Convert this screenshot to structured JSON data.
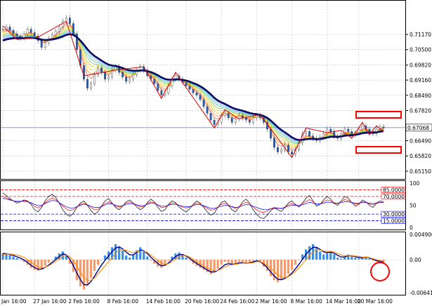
{
  "chart_data": {
    "type": "line",
    "price_panel": {
      "ylim": [
        0.649,
        0.725
      ],
      "y_ticks": [
        "0.71170",
        "0.70500",
        "0.69820",
        "0.69160",
        "0.68490",
        "0.67820",
        "0.66490",
        "0.65820",
        "0.65150"
      ],
      "y_tick_values": [
        0.7117,
        0.705,
        0.6982,
        0.6916,
        0.6849,
        0.6782,
        0.6649,
        0.6582,
        0.6515
      ],
      "current_price_label": "0.67068",
      "current_price": 0.67068,
      "closes": [
        0.714,
        0.715,
        0.7135,
        0.712,
        0.711,
        0.71,
        0.712,
        0.714,
        0.7125,
        0.711,
        0.709,
        0.706,
        0.708,
        0.71,
        0.7115,
        0.713,
        0.715,
        0.7175,
        0.719,
        0.7165,
        0.712,
        0.705,
        0.698,
        0.692,
        0.688,
        0.69,
        0.694,
        0.697,
        0.695,
        0.692,
        0.693,
        0.696,
        0.6975,
        0.695,
        0.693,
        0.691,
        0.692,
        0.694,
        0.696,
        0.6975,
        0.696,
        0.6935,
        0.692,
        0.69,
        0.687,
        0.685,
        0.686,
        0.689,
        0.692,
        0.6935,
        0.692,
        0.6905,
        0.689,
        0.6875,
        0.686,
        0.685,
        0.683,
        0.68,
        0.677,
        0.674,
        0.672,
        0.673,
        0.676,
        0.677,
        0.675,
        0.673,
        0.6745,
        0.676,
        0.675,
        0.674,
        0.673,
        0.675,
        0.676,
        0.675,
        0.673,
        0.67,
        0.666,
        0.662,
        0.66,
        0.661,
        0.663,
        0.66,
        0.659,
        0.661,
        0.664,
        0.668,
        0.669,
        0.667,
        0.666,
        0.665,
        0.6665,
        0.668,
        0.67,
        0.669,
        0.667,
        0.666,
        0.668,
        0.67,
        0.669,
        0.6675,
        0.6685,
        0.67,
        0.6715,
        0.67,
        0.669,
        0.668,
        0.67,
        0.671,
        0.6705
      ],
      "ma_slow": [
        0.709,
        0.7095,
        0.7098,
        0.71,
        0.7101,
        0.71,
        0.71,
        0.7101,
        0.7102,
        0.7101,
        0.7098,
        0.7094,
        0.7092,
        0.7093,
        0.7095,
        0.7098,
        0.7102,
        0.7108,
        0.7115,
        0.7118,
        0.7115,
        0.7105,
        0.709,
        0.7072,
        0.7052,
        0.7035,
        0.7022,
        0.7012,
        0.7002,
        0.6992,
        0.6984,
        0.698,
        0.6978,
        0.6974,
        0.6969,
        0.6963,
        0.6959,
        0.6957,
        0.6957,
        0.6958,
        0.6958,
        0.6955,
        0.6951,
        0.6945,
        0.6937,
        0.6928,
        0.6921,
        0.6918,
        0.6918,
        0.6919,
        0.6919,
        0.6917,
        0.6914,
        0.6909,
        0.6903,
        0.6897,
        0.6889,
        0.6879,
        0.6867,
        0.6853,
        0.6838,
        0.6826,
        0.6818,
        0.6811,
        0.6803,
        0.6795,
        0.6789,
        0.6785,
        0.6781,
        0.6776,
        0.6771,
        0.6768,
        0.6766,
        0.6763,
        0.6758,
        0.675,
        0.6738,
        0.6724,
        0.6709,
        0.6696,
        0.6686,
        0.6675,
        0.6664,
        0.6656,
        0.6652,
        0.6653,
        0.6656,
        0.6657,
        0.6657,
        0.6656,
        0.6657,
        0.6659,
        0.6663,
        0.6666,
        0.6666,
        0.6666,
        0.6668,
        0.6671,
        0.6673,
        0.6673,
        0.6675,
        0.6678,
        0.6682,
        0.6684,
        0.6685,
        0.6684,
        0.6686,
        0.6689,
        0.6691
      ]
    },
    "rsi_panel": {
      "ylim": [
        0,
        100
      ],
      "y_ticks": [
        "100",
        "50",
        "0"
      ],
      "y_tick_values": [
        100,
        50,
        0
      ],
      "levels": [
        {
          "label": "85.0000",
          "value": 85,
          "color": "#ff0000"
        },
        {
          "label": "70.0000",
          "value": 70,
          "color": "#ff0000"
        },
        {
          "label": "30.0000",
          "value": 30,
          "color": "#0000ff"
        },
        {
          "label": "15.0000",
          "value": 15,
          "color": "#0000ff"
        }
      ],
      "series": [
        {
          "color": "#000000",
          "values": [
            78,
            72,
            65,
            60,
            55,
            58,
            62,
            60,
            52,
            40,
            35,
            45,
            60,
            70,
            75,
            68,
            55,
            40,
            30,
            25,
            32,
            45,
            55,
            60,
            50,
            38,
            30,
            35,
            48,
            60,
            65,
            55,
            45,
            40,
            48,
            58,
            62,
            55,
            46,
            40,
            45,
            56,
            64,
            58,
            45,
            36,
            40,
            52,
            60,
            56,
            46,
            40,
            35,
            42,
            52,
            60,
            55,
            45,
            35,
            28,
            32,
            45,
            56,
            60,
            50,
            40,
            35,
            45,
            58,
            64,
            55,
            40,
            30,
            22,
            20,
            28,
            38,
            44,
            40,
            36,
            45,
            55,
            60,
            52,
            46,
            55,
            66,
            72,
            60,
            48,
            52,
            62,
            70,
            64,
            54,
            50,
            60,
            70,
            66,
            56,
            48,
            52,
            62,
            58,
            50,
            45,
            55,
            60,
            58
          ]
        },
        {
          "color": "#ff0000",
          "values": [
            70,
            67,
            63,
            60,
            58,
            59,
            60,
            59,
            55,
            48,
            44,
            48,
            56,
            62,
            66,
            63,
            56,
            48,
            42,
            38,
            40,
            46,
            52,
            55,
            51,
            45,
            40,
            41,
            47,
            54,
            58,
            54,
            48,
            46,
            49,
            55,
            58,
            55,
            50,
            46,
            48,
            54,
            58,
            56,
            50,
            45,
            46,
            51,
            55,
            54,
            50,
            46,
            44,
            46,
            51,
            55,
            53,
            48,
            43,
            39,
            40,
            46,
            52,
            55,
            51,
            46,
            43,
            47,
            53,
            57,
            54,
            46,
            40,
            35,
            34,
            37,
            42,
            45,
            44,
            42,
            46,
            51,
            54,
            51,
            49,
            53,
            59,
            63,
            58,
            52,
            53,
            58,
            62,
            60,
            56,
            54,
            58,
            63,
            61,
            57,
            53,
            54,
            58,
            57,
            53,
            51,
            54,
            57,
            56
          ]
        },
        {
          "color": "#0000ff",
          "values": [
            66,
            64,
            62,
            60,
            59,
            59,
            59,
            58,
            56,
            52,
            49,
            50,
            54,
            58,
            61,
            60,
            56,
            51,
            47,
            44,
            44,
            47,
            50,
            52,
            51,
            48,
            45,
            45,
            47,
            51,
            54,
            53,
            50,
            48,
            49,
            52,
            54,
            53,
            51,
            49,
            49,
            52,
            55,
            54,
            51,
            48,
            48,
            50,
            52,
            52,
            50,
            48,
            47,
            47,
            49,
            52,
            51,
            49,
            46,
            43,
            43,
            45,
            48,
            50,
            49,
            47,
            45,
            46,
            49,
            52,
            51,
            48,
            45,
            42,
            40,
            40,
            42,
            43,
            43,
            43,
            45,
            48,
            50,
            50,
            49,
            51,
            54,
            57,
            55,
            53,
            53,
            55,
            57,
            57,
            55,
            55,
            56,
            58,
            58,
            56,
            55,
            55,
            56,
            56,
            55,
            54,
            55,
            56,
            56
          ]
        }
      ]
    },
    "macd_panel": {
      "ylim": [
        -0.0064137,
        0.0049007
      ],
      "y_ticks": [
        "0.0049007",
        "0.00",
        "-0.0064137"
      ],
      "y_tick_values": [
        0.0049007,
        0,
        -0.0064137
      ],
      "histogram": [
        0.0012,
        0.0011,
        0.0009,
        0.0006,
        0.0003,
        0.0,
        -0.0004,
        -0.001,
        -0.0016,
        -0.002,
        -0.0022,
        -0.0018,
        -0.0012,
        -0.0006,
        0.0,
        0.0006,
        0.0012,
        0.0016,
        0.0008,
        -0.0008,
        -0.0024,
        -0.004,
        -0.0052,
        -0.0058,
        -0.005,
        -0.0036,
        -0.0022,
        -0.001,
        0.0,
        0.0008,
        0.0016,
        0.0024,
        0.003,
        0.0026,
        0.0018,
        0.0008,
        0.0004,
        0.001,
        0.0018,
        0.0024,
        0.0016,
        0.0006,
        -0.0002,
        -0.0008,
        -0.0014,
        -0.0016,
        -0.001,
        -0.0002,
        0.0006,
        0.0012,
        0.0014,
        0.001,
        0.0004,
        -0.0002,
        -0.0008,
        -0.0012,
        -0.0016,
        -0.002,
        -0.0024,
        -0.0028,
        -0.0024,
        -0.0018,
        -0.001,
        -0.0004,
        -0.0006,
        -0.001,
        -0.0008,
        -0.0004,
        -0.0006,
        -0.0008,
        -0.0006,
        -0.0002,
        0.0,
        -0.0006,
        -0.0014,
        -0.0022,
        -0.0032,
        -0.004,
        -0.0044,
        -0.004,
        -0.0034,
        -0.0028,
        -0.002,
        -0.001,
        0.0,
        0.001,
        0.002,
        0.0026,
        0.003,
        0.0024,
        0.0016,
        0.001,
        0.0012,
        0.0016,
        0.001,
        0.0004,
        0.0002,
        0.0006,
        0.001,
        0.0008,
        0.0004,
        0.0002,
        0.0004,
        0.0006,
        0.0002,
        -0.0002,
        -0.0004,
        -0.0006,
        -0.0005
      ],
      "signal": [
        0.001,
        0.0011,
        0.0011,
        0.001,
        0.0009,
        0.0007,
        0.0004,
        0.0,
        -0.0005,
        -0.001,
        -0.0014,
        -0.0016,
        -0.0015,
        -0.0012,
        -0.0008,
        -0.0003,
        0.0002,
        0.0007,
        0.0009,
        0.0006,
        -0.0002,
        -0.0012,
        -0.0024,
        -0.0034,
        -0.004,
        -0.004,
        -0.0036,
        -0.0028,
        -0.002,
        -0.0012,
        -0.0004,
        0.0004,
        0.0012,
        0.0018,
        0.002,
        0.0018,
        0.0015,
        0.0014,
        0.0015,
        0.0017,
        0.0017,
        0.0014,
        0.0009,
        0.0004,
        -0.0002,
        -0.0007,
        -0.0009,
        -0.0008,
        -0.0004,
        0.0001,
        0.0006,
        0.0008,
        0.0008,
        0.0005,
        0.0001,
        -0.0004,
        -0.0008,
        -0.0012,
        -0.0016,
        -0.002,
        -0.0022,
        -0.0021,
        -0.0018,
        -0.0014,
        -0.0011,
        -0.001,
        -0.0009,
        -0.0008,
        -0.0007,
        -0.0007,
        -0.0007,
        -0.0006,
        -0.0004,
        -0.0004,
        -0.0007,
        -0.0011,
        -0.0017,
        -0.0023,
        -0.003,
        -0.0034,
        -0.0035,
        -0.0033,
        -0.0029,
        -0.0023,
        -0.0016,
        -0.0008,
        0.0,
        0.0008,
        0.0015,
        0.0019,
        0.0019,
        0.0017,
        0.0016,
        0.0016,
        0.0015,
        0.0012,
        0.0009,
        0.0008,
        0.0008,
        0.0008,
        0.0007,
        0.0006,
        0.0005,
        0.0005,
        0.0004,
        0.0002,
        0.0,
        -0.0002,
        -0.0003
      ],
      "main_color": "#00008b",
      "signal_color": "#ff8c00"
    },
    "x_tick_labels": [
      "Jan 16:00",
      "27 Jan 16:00",
      "2 Feb 16:00",
      "8 Feb 16:00",
      "14 Feb 16:00",
      "20 Feb 16:00",
      "24 Feb 16:00",
      "2 Mar 16:00",
      "8 Mar 16:00",
      "14 Mar 16:00",
      "20 Mar 16:00"
    ],
    "x_tick_indices": [
      0,
      9,
      19,
      30,
      41,
      52,
      62,
      72,
      82,
      92,
      101
    ],
    "annotation_color": "#ff0000",
    "grid": true
  }
}
